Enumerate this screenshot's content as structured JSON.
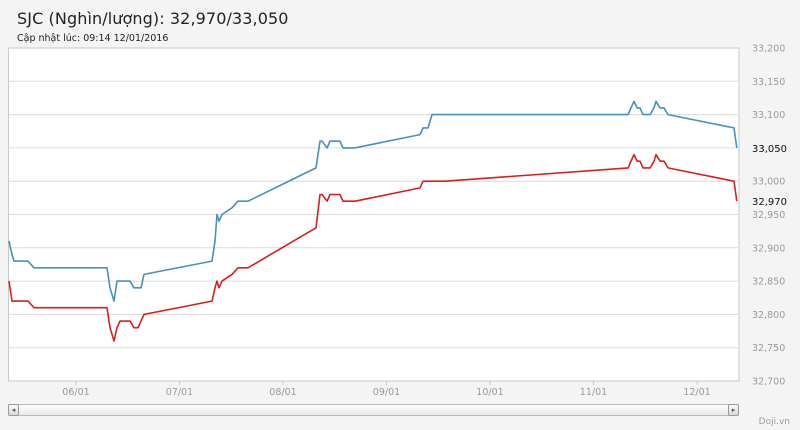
{
  "header": {
    "title": "SJC (Nghìn/lượng): 32,970/33,050",
    "subtitle": "Cập nhật lúc: 09:14 12/01/2016"
  },
  "credit": "Doji.vn",
  "scrollbar": {
    "left_icon": "arrow-left-icon",
    "right_icon": "arrow-right-icon",
    "left_glyph": "◂",
    "right_glyph": "▸"
  },
  "chart_data": {
    "type": "line",
    "title": "SJC (Nghìn/lượng): 32,970/33,050",
    "xlabel": "",
    "ylabel": "",
    "y_axis_side": "right",
    "ylim": [
      32700,
      33200
    ],
    "y_ticks": [
      {
        "value": 32700,
        "label": "32,700"
      },
      {
        "value": 32750,
        "label": "32,750"
      },
      {
        "value": 32800,
        "label": "32,800"
      },
      {
        "value": 32850,
        "label": "32,850"
      },
      {
        "value": 32900,
        "label": "32,900"
      },
      {
        "value": 32950,
        "label": "32,950"
      },
      {
        "value": 33000,
        "label": "33,000"
      },
      {
        "value": 33100,
        "label": "33,100"
      },
      {
        "value": 33150,
        "label": "33,150"
      },
      {
        "value": 33200,
        "label": "33,200"
      }
    ],
    "y_gridline_values": [
      32700,
      32750,
      32800,
      32850,
      32900,
      32950,
      33000,
      33050,
      33100,
      33150,
      33200
    ],
    "x_ticks": [
      {
        "value": "2016-01-06 00:00",
        "label": "06/01"
      },
      {
        "value": "2016-01-07 00:00",
        "label": "07/01"
      },
      {
        "value": "2016-01-08 00:00",
        "label": "08/01"
      },
      {
        "value": "2016-01-09 00:00",
        "label": "09/01"
      },
      {
        "value": "2016-01-10 00:00",
        "label": "10/01"
      },
      {
        "value": "2016-01-11 00:00",
        "label": "11/01"
      },
      {
        "value": "2016-01-12 00:00",
        "label": "12/01"
      }
    ],
    "grid": true,
    "legend": "none",
    "x": [
      "2016-01-05 08:28",
      "2016-01-05 09:10",
      "2016-01-05 09:37",
      "2016-01-05 12:52",
      "2016-01-05 14:16",
      "2016-01-06 07:11",
      "2016-01-06 07:53",
      "2016-01-06 08:49",
      "2016-01-06 09:31",
      "2016-01-06 10:12",
      "2016-01-06 11:08",
      "2016-01-06 12:31",
      "2016-01-06 13:27",
      "2016-01-06 14:23",
      "2016-01-06 15:04",
      "2016-01-06 15:46",
      "2016-01-07 07:32",
      "2016-01-07 08:14",
      "2016-01-07 08:42",
      "2016-01-07 09:10",
      "2016-01-07 09:51",
      "2016-01-07 12:11",
      "2016-01-07 13:34",
      "2016-01-07 14:02",
      "2016-01-07 15:53",
      "2016-01-08 07:39",
      "2016-01-08 08:35",
      "2016-01-08 09:03",
      "2016-01-08 10:13",
      "2016-01-08 10:54",
      "2016-01-08 13:13",
      "2016-01-08 13:55",
      "2016-01-08 16:42",
      "2016-01-09 07:46",
      "2016-01-09 08:28",
      "2016-01-09 09:38",
      "2016-01-09 10:33",
      "2016-01-09 13:34",
      "2016-01-11 08:01",
      "2016-01-11 08:42",
      "2016-01-11 09:24",
      "2016-01-11 10:06",
      "2016-01-11 10:47",
      "2016-01-11 11:29",
      "2016-01-11 13:07",
      "2016-01-11 14:02",
      "2016-01-11 14:30",
      "2016-01-11 15:26",
      "2016-01-11 16:21",
      "2016-01-11 17:17",
      "2016-01-12 08:35",
      "2016-01-12 09:14"
    ],
    "series": [
      {
        "color": "#4a90b8",
        "last_label": "33,050",
        "values": [
          32910,
          32890,
          32880,
          32880,
          32870,
          32870,
          32840,
          32820,
          32850,
          32850,
          32850,
          32850,
          32840,
          32840,
          32840,
          32860,
          32880,
          32910,
          32950,
          32940,
          32950,
          32960,
          32970,
          32970,
          32970,
          33020,
          33060,
          33060,
          33050,
          33060,
          33060,
          33050,
          33050,
          33070,
          33080,
          33080,
          33100,
          33100,
          33100,
          33110,
          33120,
          33110,
          33110,
          33100,
          33100,
          33110,
          33120,
          33110,
          33110,
          33100,
          33080,
          33050
        ]
      },
      {
        "color": "#d81e1e",
        "last_label": "32,970",
        "values": [
          32850,
          32820,
          32820,
          32820,
          32810,
          32810,
          32780,
          32760,
          32780,
          32790,
          32790,
          32790,
          32780,
          32780,
          32790,
          32800,
          32820,
          32840,
          32850,
          32840,
          32850,
          32860,
          32870,
          32870,
          32870,
          32930,
          32980,
          32980,
          32970,
          32980,
          32980,
          32970,
          32970,
          32990,
          33000,
          33000,
          33000,
          33000,
          33020,
          33030,
          33040,
          33030,
          33030,
          33020,
          33020,
          33030,
          33040,
          33030,
          33030,
          33020,
          33000,
          32970
        ]
      }
    ]
  }
}
